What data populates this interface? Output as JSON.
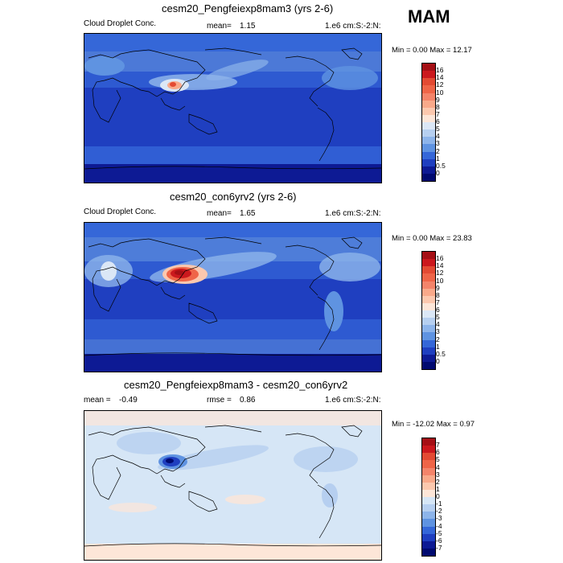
{
  "season": "MAM",
  "panels": [
    {
      "title": "cesm20_Pengfeiexp8mam3 (yrs 2-6)",
      "left_label": "Cloud Droplet Conc.",
      "mean_label": "mean=",
      "mean_value": "1.15",
      "units": "1.e6 cm:S:-2:N:",
      "minmax": "Min =  0.00 Max =  12.17",
      "colorbar_labels": [
        "16",
        "14",
        "12",
        "10",
        "9",
        "8",
        "7",
        "6",
        "5",
        "4",
        "3",
        "2",
        "1",
        "0.5",
        "0"
      ],
      "colorbar_colors": [
        "#a50f15",
        "#cb181d",
        "#e34a33",
        "#ef6548",
        "#f4846a",
        "#f9a98a",
        "#fcc8ae",
        "#fde6d8",
        "#dbe7f6",
        "#b6cff0",
        "#8db4ea",
        "#5f93e1",
        "#3567d8",
        "#1f3fc0",
        "#0d1a94",
        "#000a70"
      ]
    },
    {
      "title": "cesm20_con6yrv2 (yrs 2-6)",
      "left_label": "Cloud Droplet Conc.",
      "mean_label": "mean=",
      "mean_value": "1.65",
      "units": "1.e6 cm:S:-2:N:",
      "minmax": "Min =  0.00 Max =  23.83",
      "colorbar_labels": [
        "16",
        "14",
        "12",
        "10",
        "9",
        "8",
        "7",
        "6",
        "5",
        "4",
        "3",
        "2",
        "1",
        "0.5",
        "0"
      ],
      "colorbar_colors": [
        "#a50f15",
        "#cb181d",
        "#e34a33",
        "#ef6548",
        "#f4846a",
        "#f9a98a",
        "#fcc8ae",
        "#fde6d8",
        "#dbe7f6",
        "#b6cff0",
        "#8db4ea",
        "#5f93e1",
        "#3567d8",
        "#1f3fc0",
        "#0d1a94",
        "#000a70"
      ]
    },
    {
      "title": "cesm20_Pengfeiexp8mam3 - cesm20_con6yrv2",
      "mean_label": "mean =",
      "mean_value": "-0.49",
      "rmse_label": "rmse =",
      "rmse_value": "0.86",
      "units": "1.e6 cm:S:-2:N:",
      "minmax": "Min = -12.02 Max =   0.97",
      "colorbar_labels": [
        "7",
        "6",
        "5",
        "4",
        "3",
        "2",
        "1",
        "0",
        "-1",
        "-2",
        "-3",
        "-4",
        "-5",
        "-6",
        "-7"
      ],
      "colorbar_colors": [
        "#a50f15",
        "#cb181d",
        "#e34a33",
        "#ef6548",
        "#f4846a",
        "#f9a98a",
        "#fcc8ae",
        "#fde6d8",
        "#d6e6f6",
        "#b6cff0",
        "#8db4ea",
        "#5f93e1",
        "#3567d8",
        "#1f3fc0",
        "#0d1a94",
        "#000a70"
      ]
    }
  ]
}
